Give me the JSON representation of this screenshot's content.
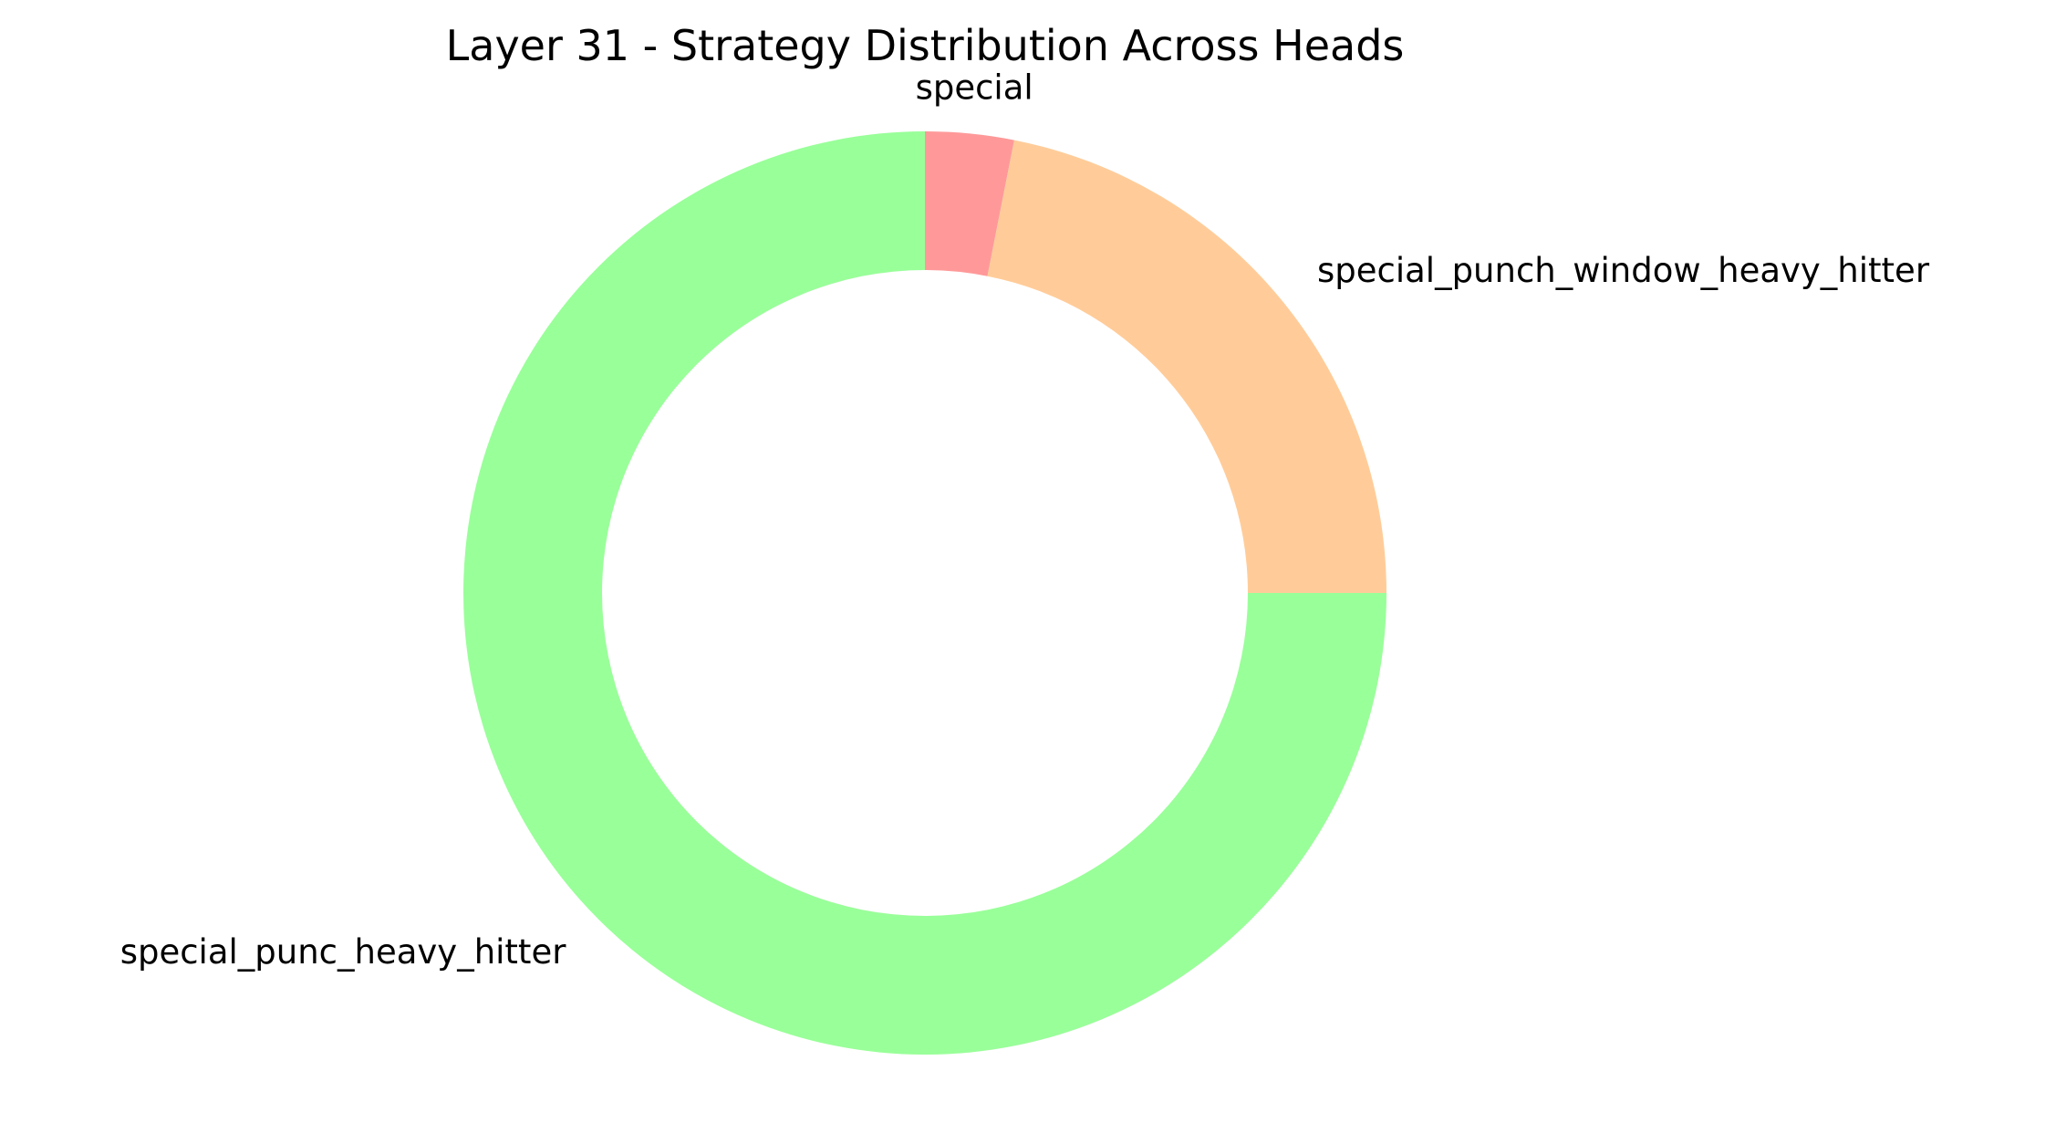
{
  "chart_data": {
    "type": "pie",
    "style": "donut",
    "title": "Layer 31 - Strategy Distribution Across Heads",
    "start": "top",
    "direction": "clockwise",
    "legend": "none",
    "slices": [
      {
        "label": "special",
        "value": 3.1,
        "color": "#ff9999"
      },
      {
        "label": "special_punch_window_heavy_hitter",
        "value": 21.9,
        "color": "#ffcc99"
      },
      {
        "label": "special_punc_heavy_hitter",
        "value": 75.0,
        "color": "#99ff99"
      }
    ]
  }
}
